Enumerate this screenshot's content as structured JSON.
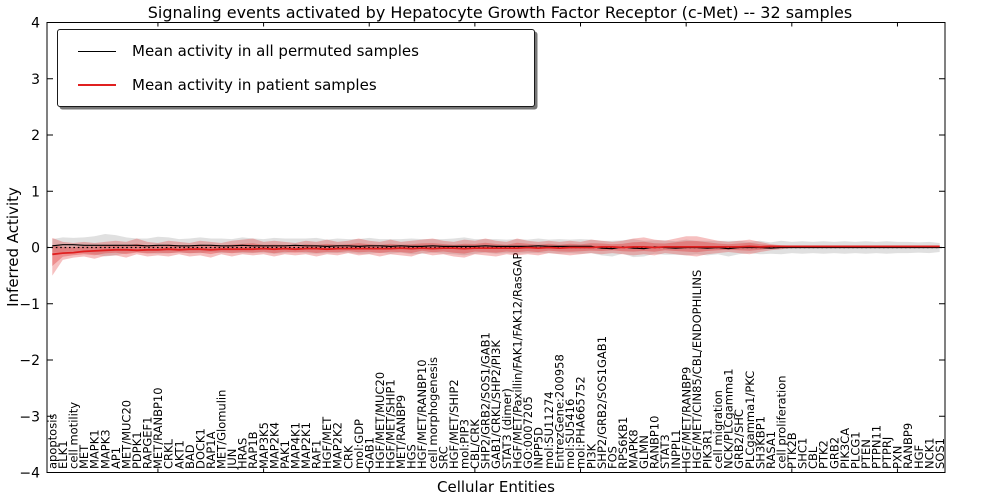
{
  "figure": {
    "title": "Signaling events activated by Hepatocyte Growth Factor Receptor (c-Met) -- 32 samples",
    "xlabel": "Cellular Entities",
    "ylabel": "Inferred Activity"
  },
  "colors": {
    "permuted_line": "#000000",
    "permuted_band": "#999999",
    "patient_line": "#e02020",
    "patient_band": "#e03030",
    "axis": "#000000",
    "background": "#ffffff"
  },
  "chart_data": {
    "type": "line",
    "title": "Signaling events activated by Hepatocyte Growth Factor Receptor (c-Met) -- 32 samples",
    "xlabel": "Cellular Entities",
    "ylabel": "Inferred Activity",
    "ylim": [
      -4,
      4
    ],
    "grid": false,
    "legend_position": "upper left",
    "zero_line": true,
    "yticks": [
      {
        "value": 4,
        "label": "4"
      },
      {
        "value": 3,
        "label": "3"
      },
      {
        "value": 2,
        "label": "2"
      },
      {
        "value": 1,
        "label": "1"
      },
      {
        "value": 0,
        "label": "0"
      },
      {
        "value": -1,
        "label": "−1"
      },
      {
        "value": -2,
        "label": "−2"
      },
      {
        "value": -3,
        "label": "−3"
      },
      {
        "value": -4,
        "label": "−4"
      }
    ],
    "categories": [
      "apoptosis",
      "ELK1",
      "cell motility",
      "MET",
      "MAPK1",
      "MAPK3",
      "AP1",
      "MET/MUC20",
      "PDPK1",
      "RAPGEF1",
      "MET/RANBP10",
      "CRKL",
      "AKT1",
      "BAD",
      "DOCK1",
      "RAP1A",
      "MET/Glomulin",
      "JUN",
      "HRAS",
      "RAP1B",
      "MAP3K5",
      "MAP2K4",
      "PAK1",
      "MAP4K1",
      "MAP2K1",
      "RAF1",
      "HGF/MET",
      "MAP2K2",
      "CRK",
      "mol:GDP",
      "GAB1",
      "HGF/MET/MUC20",
      "HGF/MET/SHIP1",
      "MET/RANBP9",
      "HGS",
      "HGF/MET/RANBP10",
      "cell morphogenesis",
      "SRC",
      "HGF/MET/SHIP2",
      "mol:PIP3",
      "CBL/CRK",
      "SHP2/GRB2/SOS1/GAB1",
      "GAB1/CRKL/SHP2/PI3K",
      "STAT3 (dimer)",
      "HGF/MET/Paxillin/FAK1/FAK12/RasGAP",
      "GO:0007205",
      "INPP5D",
      "mol:SU11274",
      "EntrezGene:200958",
      "mol:SU5416",
      "mol:PHA665752",
      "PI3K",
      "SHP2/GRB2/SOS1GAB1",
      "FOS",
      "RPS6KB1",
      "MAPK8",
      "GLMN",
      "RANBP10",
      "STAT3",
      "INPPL1",
      "HGF/MET/RANBP9",
      "HGF/MET/CIN85/CBL/ENDOPHILINS",
      "PIK3R1",
      "cell migration",
      "NCK/PLCgamma1",
      "GRB2/SHC",
      "PLCgamma1/PKC",
      "SH3KBP1",
      "RASA1",
      "cell proliferation",
      "PTK2B",
      "SHC1",
      "CBL",
      "PTK2",
      "GRB2",
      "PIK3CA",
      "PLCG1",
      "PTEN",
      "PTPN11",
      "PTPRJ",
      "PXN",
      "RANBP9",
      "HGF",
      "NCK1",
      "SOS1"
    ],
    "series": [
      {
        "name": "Mean activity in all permuted samples",
        "color": "#000000",
        "band_color": "#999999",
        "values": [
          0.03,
          0.05,
          0.05,
          0.04,
          0.04,
          0.04,
          0.04,
          0.04,
          0.04,
          0.03,
          0.04,
          0.04,
          0.03,
          0.03,
          0.04,
          0.04,
          0.03,
          0.03,
          0.04,
          0.03,
          0.03,
          0.03,
          0.03,
          0.04,
          0.03,
          0.03,
          0.02,
          0.03,
          0.03,
          0.02,
          0.03,
          0.03,
          0.02,
          0.03,
          0.02,
          0.02,
          0.03,
          0.02,
          0.02,
          0.02,
          0.02,
          0.03,
          0.02,
          0.02,
          0.02,
          0.02,
          0.03,
          0.02,
          0.02,
          0.02,
          0.02,
          0.02,
          -0.01,
          -0.02,
          0.01,
          -0.01,
          -0.02,
          0.01,
          0,
          -0.01,
          0,
          0,
          -0.01,
          0,
          -0.02,
          0,
          0,
          0,
          -0.01,
          0,
          0,
          0,
          0,
          0,
          0,
          0,
          0,
          0,
          0,
          0,
          0,
          0,
          0,
          0,
          0
        ],
        "band_upper": [
          0.15,
          0.18,
          0.17,
          0.18,
          0.2,
          0.24,
          0.22,
          0.18,
          0.16,
          0.16,
          0.19,
          0.18,
          0.15,
          0.16,
          0.18,
          0.16,
          0.16,
          0.15,
          0.18,
          0.16,
          0.15,
          0.17,
          0.16,
          0.16,
          0.16,
          0.17,
          0.14,
          0.16,
          0.15,
          0.15,
          0.17,
          0.15,
          0.15,
          0.15,
          0.16,
          0.15,
          0.15,
          0.15,
          0.16,
          0.18,
          0.15,
          0.15,
          0.15,
          0.14,
          0.15,
          0.14,
          0.16,
          0.14,
          0.15,
          0.14,
          0.15,
          0.14,
          0.12,
          0.12,
          0.13,
          0.15,
          0.12,
          0.13,
          0.13,
          0.11,
          0.14,
          0.12,
          0.12,
          0.12,
          0.12,
          0.12,
          0.1,
          0.12,
          0.09,
          0.12,
          0.1,
          0.11,
          0.1,
          0.11,
          0.1,
          0.11,
          0.1,
          0.11,
          0.1,
          0.11,
          0.1,
          0.1,
          0.09,
          0.1,
          0.08
        ],
        "band_lower": [
          -0.09,
          -0.08,
          -0.07,
          -0.1,
          -0.12,
          -0.16,
          -0.14,
          -0.1,
          -0.08,
          -0.1,
          -0.11,
          -0.1,
          -0.09,
          -0.1,
          -0.1,
          -0.08,
          -0.1,
          -0.09,
          -0.1,
          -0.1,
          -0.09,
          -0.11,
          -0.1,
          -0.08,
          -0.1,
          -0.11,
          -0.1,
          -0.1,
          -0.09,
          -0.11,
          -0.11,
          -0.09,
          -0.11,
          -0.09,
          -0.12,
          -0.11,
          -0.09,
          -0.11,
          -0.12,
          -0.14,
          -0.11,
          -0.09,
          -0.11,
          -0.1,
          -0.11,
          -0.1,
          -0.1,
          -0.1,
          -0.11,
          -0.1,
          -0.11,
          -0.1,
          -0.14,
          -0.16,
          -0.11,
          -0.17,
          -0.16,
          -0.11,
          -0.13,
          -0.13,
          -0.14,
          -0.12,
          -0.14,
          -0.12,
          -0.16,
          -0.12,
          -0.1,
          -0.12,
          -0.11,
          -0.12,
          -0.1,
          -0.11,
          -0.1,
          -0.11,
          -0.1,
          -0.11,
          -0.1,
          -0.11,
          -0.1,
          -0.11,
          -0.1,
          -0.1,
          -0.09,
          -0.1,
          -0.08
        ]
      },
      {
        "name": "Mean activity in patient samples",
        "color": "#e02020",
        "band_color": "#e03030",
        "values": [
          -0.12,
          -0.1,
          -0.09,
          -0.07,
          -0.06,
          -0.05,
          -0.04,
          -0.04,
          -0.05,
          -0.04,
          -0.04,
          -0.03,
          -0.04,
          -0.03,
          -0.03,
          -0.04,
          -0.03,
          -0.03,
          -0.03,
          -0.03,
          -0.02,
          -0.03,
          -0.02,
          -0.03,
          -0.02,
          -0.02,
          -0.03,
          -0.02,
          -0.02,
          -0.02,
          -0.02,
          -0.02,
          -0.02,
          -0.01,
          -0.02,
          -0.01,
          -0.02,
          -0.01,
          -0.01,
          -0.02,
          -0.01,
          -0.01,
          -0.01,
          -0.01,
          -0.01,
          0,
          -0.01,
          0,
          -0.01,
          0,
          0,
          0,
          0.01,
          0.01,
          0,
          0.01,
          0.01,
          0,
          0.01,
          0.01,
          0.01,
          0.01,
          0.01,
          0.01,
          0.01,
          0.01,
          0.02,
          0.01,
          0.02,
          0.02,
          0.02,
          0.02,
          0.02,
          0.02,
          0.02,
          0.02,
          0.02,
          0.02,
          0.02,
          0.02,
          0.02,
          0.02,
          0.02,
          0.02,
          0.02
        ],
        "band_upper": [
          0.17,
          0.1,
          0.08,
          0.1,
          0.08,
          0.1,
          0.12,
          0.1,
          0.16,
          0.1,
          0.08,
          0.12,
          0.1,
          0.08,
          0.12,
          0.1,
          0.08,
          0.12,
          0.14,
          0.16,
          0.1,
          0.12,
          0.1,
          0.08,
          0.12,
          0.1,
          0.14,
          0.1,
          0.12,
          0.16,
          0.12,
          0.1,
          0.14,
          0.1,
          0.12,
          0.14,
          0.16,
          0.12,
          0.1,
          0.14,
          0.12,
          0.16,
          0.12,
          0.1,
          0.16,
          0.12,
          0.1,
          0.12,
          0.1,
          0.12,
          0.1,
          0.14,
          0.12,
          0.1,
          0.12,
          0.16,
          0.18,
          0.14,
          0.12,
          0.16,
          0.2,
          0.2,
          0.16,
          0.12,
          0.1,
          0.12,
          0.14,
          0.1,
          0.06,
          0.04,
          0.03,
          0.03,
          0.03,
          0.03,
          0.03,
          0.03,
          0.03,
          0.03,
          0.03,
          0.03,
          0.03,
          0.03,
          0.03,
          0.03,
          0.03
        ],
        "band_lower": [
          -0.5,
          -0.22,
          -0.18,
          -0.16,
          -0.2,
          -0.15,
          -0.14,
          -0.18,
          -0.12,
          -0.16,
          -0.14,
          -0.16,
          -0.12,
          -0.16,
          -0.14,
          -0.18,
          -0.12,
          -0.16,
          -0.12,
          -0.14,
          -0.12,
          -0.16,
          -0.12,
          -0.14,
          -0.12,
          -0.16,
          -0.12,
          -0.14,
          -0.1,
          -0.14,
          -0.12,
          -0.16,
          -0.12,
          -0.14,
          -0.16,
          -0.1,
          -0.14,
          -0.12,
          -0.16,
          -0.18,
          -0.12,
          -0.14,
          -0.16,
          -0.12,
          -0.14,
          -0.12,
          -0.14,
          -0.1,
          -0.12,
          -0.14,
          -0.12,
          -0.1,
          -0.12,
          -0.1,
          -0.12,
          -0.14,
          -0.12,
          -0.14,
          -0.1,
          -0.12,
          -0.14,
          -0.16,
          -0.12,
          -0.1,
          -0.08,
          -0.1,
          -0.12,
          -0.08,
          -0.05,
          -0.03,
          -0.01,
          -0.01,
          -0.01,
          -0.01,
          -0.01,
          -0.01,
          -0.01,
          -0.01,
          -0.01,
          -0.01,
          -0.01,
          -0.01,
          -0.01,
          -0.01,
          -0.01
        ]
      }
    ]
  }
}
